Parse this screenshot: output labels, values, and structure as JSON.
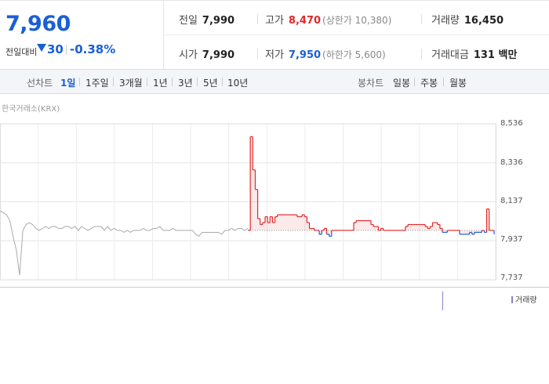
{
  "quote": {
    "current_price": "7,960",
    "change_label": "전일대비",
    "change_value": "30",
    "change_percent": "-0.38%",
    "direction": "down"
  },
  "stats": {
    "prev_close_label": "전일",
    "prev_close": "7,990",
    "high_label": "고가",
    "high": "8,470",
    "upper_limit": "(상한가 10,380)",
    "volume_label": "거래량",
    "volume": "16,450",
    "open_label": "시가",
    "open": "7,990",
    "low_label": "저가",
    "low": "7,950",
    "lower_limit": "(하한가 5,600)",
    "value_label": "거래대금",
    "value": "131 백만"
  },
  "line_tabs": {
    "label": "선차트",
    "items": [
      "1일",
      "1주일",
      "3개월",
      "1년",
      "3년",
      "5년",
      "10년"
    ],
    "active": "1일"
  },
  "candle_tabs": {
    "label": "봉차트",
    "items": [
      "일봉",
      "주봉",
      "월봉"
    ]
  },
  "source_label": "한국거래소(KRX)",
  "volume_legend": "거래량",
  "colors": {
    "up": "#e02a2a",
    "down": "#1a5fd6",
    "prev_day": "#aaaaaa",
    "volume": "#8c7fc8"
  },
  "chart_data": {
    "type": "line",
    "y_ticks": [
      "8,536",
      "8,336",
      "8,137",
      "7,937",
      "7,737"
    ],
    "ylim": [
      7737,
      8536
    ],
    "baseline": 7990,
    "prev_day_series": [
      8090,
      8080,
      8070,
      8040,
      7960,
      7890,
      7760,
      7990,
      8020,
      8030,
      8020,
      8000,
      7990,
      8000,
      8010,
      8000,
      8010,
      8010,
      8000,
      8000,
      8010,
      8010,
      8000,
      8010,
      7990,
      8010,
      8000,
      7990,
      8000,
      8010,
      8010,
      8010,
      7990,
      8010,
      7990,
      8000,
      7990,
      7990,
      7980,
      7990,
      7980,
      7990,
      7990,
      7990,
      8000,
      7990,
      7990,
      8000,
      8000,
      8010,
      7990,
      7990,
      7990,
      8000,
      7990,
      7990,
      7990,
      7990,
      7990,
      7990,
      7970,
      7960,
      7980,
      7980,
      7980,
      7980,
      7980,
      7980,
      7970,
      7990,
      7990,
      8000,
      7990,
      8000,
      8000,
      7990,
      8000
    ],
    "today_series": [
      7990,
      8470,
      8300,
      8200,
      8050,
      8020,
      8030,
      8060,
      8030,
      8060,
      8030,
      8060,
      8070,
      8070,
      8070,
      8070,
      8070,
      8070,
      8070,
      8070,
      8060,
      8060,
      8070,
      8060,
      8030,
      8000,
      8000,
      7990,
      7990,
      7970,
      7990,
      8000,
      7970,
      7960,
      7990,
      7990,
      7990,
      7990,
      7990,
      7990,
      7990,
      7990,
      7990,
      8030,
      8040,
      8040,
      8040,
      8040,
      8040,
      8040,
      8020,
      8010,
      8010,
      7990,
      8000,
      7990,
      7990,
      7990,
      7990,
      7990,
      7990,
      7990,
      7990,
      7990,
      8010,
      8020,
      8020,
      8020,
      8020,
      8020,
      8020,
      8020,
      8010,
      8000,
      8010,
      8030,
      8030,
      8020,
      8000,
      7980,
      7980,
      7990,
      7990,
      7990,
      7990,
      7990,
      7970,
      7970,
      7970,
      7970,
      7980,
      7970,
      7980,
      7980,
      7980,
      7990,
      7980,
      8100,
      7990,
      7990,
      7970
    ]
  }
}
